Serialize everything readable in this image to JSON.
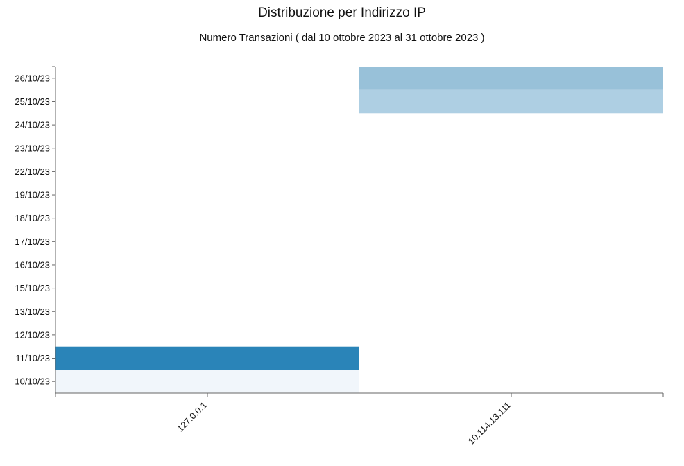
{
  "chart_data": {
    "type": "heatmap",
    "title": "Distribuzione per Indirizzo IP",
    "subtitle": "Numero Transazioni ( dal 10 ottobre 2023 al 31 ottobre 2023 )",
    "x_categories": [
      "127.0.0.1",
      "10.114.13.111"
    ],
    "y_categories": [
      "10/10/23",
      "11/10/23",
      "12/10/23",
      "13/10/23",
      "15/10/23",
      "16/10/23",
      "17/10/23",
      "18/10/23",
      "19/10/23",
      "22/10/23",
      "23/10/23",
      "24/10/23",
      "25/10/23",
      "26/10/23"
    ],
    "cells": [
      {
        "x": "127.0.0.1",
        "y": "10/10/23",
        "color": "#f1f6fb"
      },
      {
        "x": "127.0.0.1",
        "y": "11/10/23",
        "color": "#2a84b8"
      },
      {
        "x": "10.114.13.111",
        "y": "25/10/23",
        "color": "#aecfe3"
      },
      {
        "x": "10.114.13.111",
        "y": "26/10/23",
        "color": "#98c1d9"
      }
    ],
    "grid": false,
    "legend": "none"
  }
}
